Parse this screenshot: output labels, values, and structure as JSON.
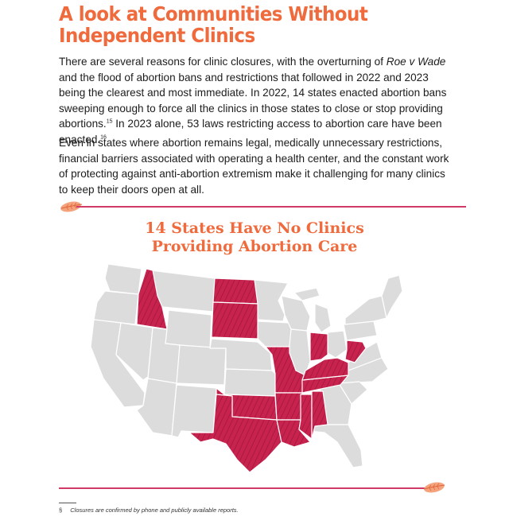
{
  "heading": {
    "line1": "A look at Communities Without",
    "line2": "Independent Clinics"
  },
  "paragraph1": {
    "part1": "There are several reasons for clinic closures, with the overturning of ",
    "case_name": "Roe v Wade",
    "part2": " and the flood of abortion bans and restrictions that followed in 2022 and 2023 being the clearest and most immediate. In 2022, 14 states enacted abortion bans sweeping enough to force all the clinics in those states to close or stop providing abortions.",
    "ref1": "15",
    "part3": " In 2023 alone, 53 laws restricting access to abortion care have been enacted.",
    "ref2": "16"
  },
  "paragraph2": "Even in states where abortion remains legal, medically unnecessary restrictions, financial barriers associated with operating a health center, and the constant work of protecting against anti-abortion extremism make it challenging for many clinics to keep their doors open at all.",
  "map": {
    "title_line1": "14 States Have No Clinics",
    "title_line2": "Providing Abortion Care",
    "highlight_color": "#c8234f",
    "base_color": "#dcdcdc",
    "highlighted_states": [
      "Idaho",
      "North Dakota",
      "South Dakota",
      "Texas",
      "Oklahoma",
      "Missouri",
      "Arkansas",
      "Louisiana",
      "Mississippi",
      "Alabama",
      "Tennessee",
      "Kentucky",
      "Indiana",
      "West Virginia"
    ]
  },
  "footnote": {
    "symbol": "§",
    "text": "Closures are confirmed by phone and publicly available reports."
  },
  "colors": {
    "accent_orange": "#ef6a3c",
    "rule_pink": "#cf3a66"
  }
}
